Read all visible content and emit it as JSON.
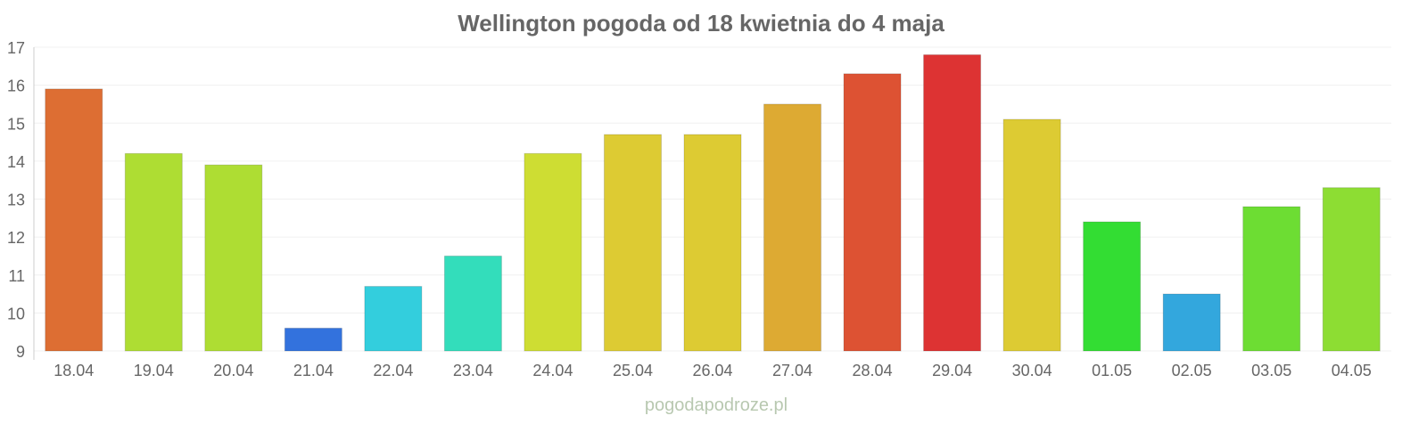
{
  "chart_data": {
    "type": "bar",
    "title": "Wellington pogoda od 18 kwietnia do 4 maja",
    "xlabel": "",
    "ylabel": "",
    "ylim": [
      9,
      17
    ],
    "yticks": [
      9,
      10,
      11,
      12,
      13,
      14,
      15,
      16,
      17
    ],
    "grid": true,
    "categories": [
      "18.04",
      "19.04",
      "20.04",
      "21.04",
      "22.04",
      "23.04",
      "24.04",
      "25.04",
      "26.04",
      "27.04",
      "28.04",
      "29.04",
      "30.04",
      "01.05",
      "02.05",
      "03.05",
      "04.05"
    ],
    "values": [
      15.9,
      14.2,
      13.9,
      9.6,
      10.7,
      11.5,
      14.2,
      14.7,
      14.7,
      15.5,
      16.3,
      16.8,
      15.1,
      12.4,
      10.5,
      12.8,
      13.3
    ],
    "colors": [
      "#dd6e33",
      "#aedd33",
      "#aedd33",
      "#3372dd",
      "#33cedd",
      "#33ddbb",
      "#cedd33",
      "#ddcb33",
      "#ddcb33",
      "#ddaa33",
      "#dd5233",
      "#dd3333",
      "#ddcb33",
      "#33dd33",
      "#33a7dd",
      "#6ddd33",
      "#8ddd33"
    ]
  },
  "watermark": "pogodapodroze.pl"
}
